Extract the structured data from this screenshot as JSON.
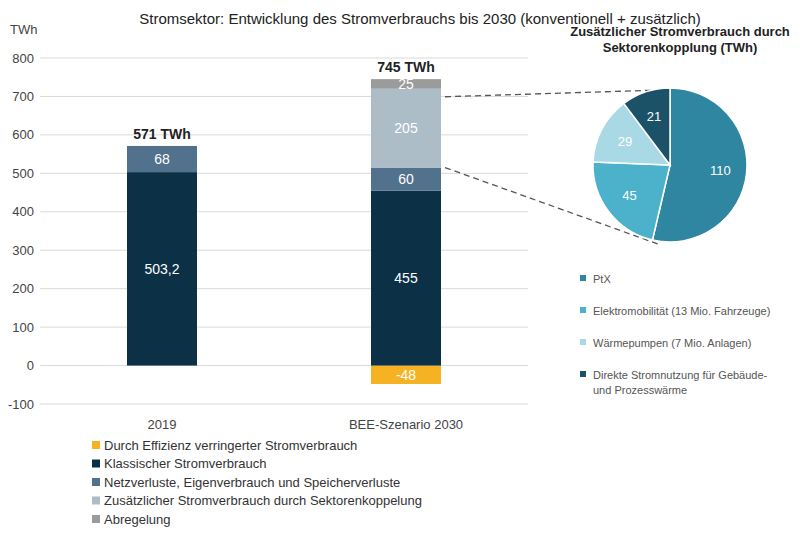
{
  "chart_data": [
    {
      "type": "bar",
      "title": "Stromsektor: Entwicklung des Stromverbrauchs bis 2030 (konventionell + zusätzlich)",
      "y_label": "TWh",
      "categories": [
        "2019",
        "BEE-Szenario 2030"
      ],
      "stacked": true,
      "data_labels": true,
      "legend": "bottom",
      "grid": true,
      "ylim": [
        -100,
        800
      ],
      "yticks": [
        -100,
        0,
        100,
        200,
        300,
        400,
        500,
        600,
        700,
        800
      ],
      "series": [
        {
          "name": "Durch Effizienz verringerter Stromverbrauch",
          "color": "#f5b324",
          "values": [
            null,
            -48
          ]
        },
        {
          "name": "Klassischer Stromverbrauch",
          "color": "#0c3147",
          "values": [
            503.2,
            455
          ],
          "value_labels": [
            "503,2",
            "455"
          ]
        },
        {
          "name": "Netzverluste, Eigenverbrauch und Speicherverluste",
          "color": "#52718c",
          "values": [
            68,
            60
          ]
        },
        {
          "name": "Zusätzlicher Stromverbrauch durch Sektorenkoppelung",
          "color": "#adbdc7",
          "values": [
            null,
            205
          ]
        },
        {
          "name": "Abregelung",
          "color": "#9b9b9b",
          "values": [
            null,
            25
          ]
        }
      ],
      "annotations": [
        {
          "text": "571 TWh",
          "value": 571,
          "category": "2019"
        },
        {
          "text": "745 TWh",
          "value": 745,
          "category": "BEE-Szenario 2030"
        }
      ]
    },
    {
      "type": "pie",
      "title": "Zusätzlicher Stromverbrauch durch Sektorenkopplung (TWh)",
      "categories": [
        "PtX",
        "Elektromobilität (13 Mio. Fahrzeuge)",
        "Wärmepumpen (7 Mio. Anlagen)",
        "Direkte Stromnutzung für Gebäude- und Prozesswärme"
      ],
      "values": [
        110,
        45,
        29,
        21
      ],
      "colors": [
        "#2f86a1",
        "#4cb1ca",
        "#aad9e6",
        "#1c5267"
      ],
      "data_labels": true,
      "legend": "bottom"
    }
  ]
}
